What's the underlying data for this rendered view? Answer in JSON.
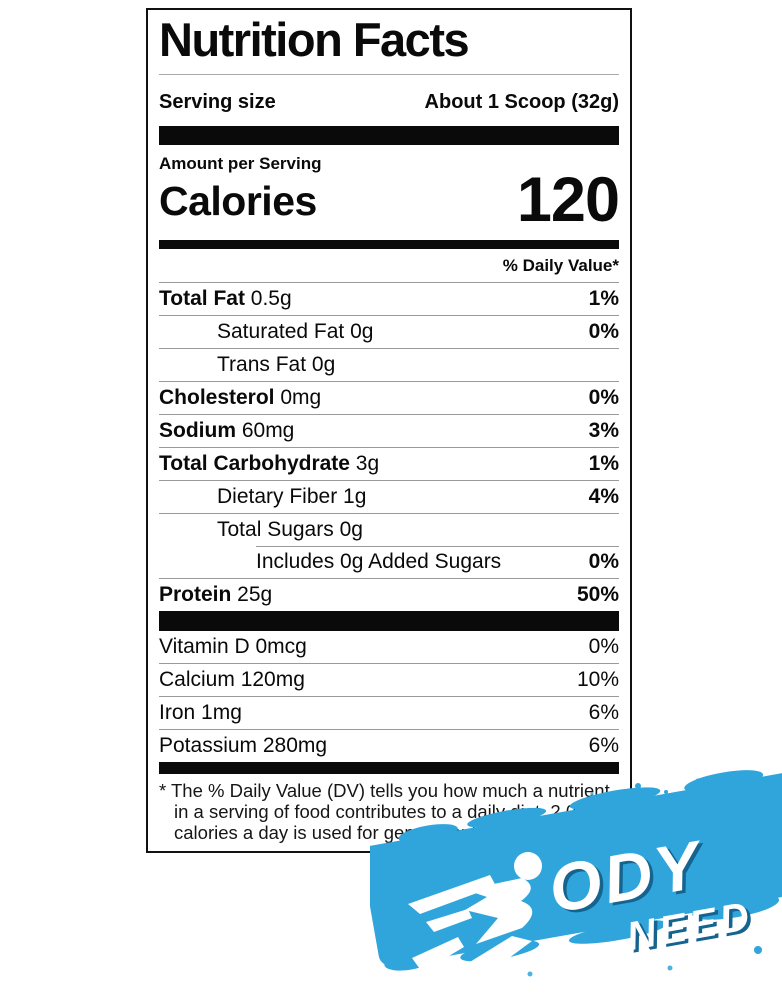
{
  "page": {
    "background": "#ffffff"
  },
  "label": {
    "title": "Nutrition Facts",
    "serving": {
      "label": "Serving size",
      "value": "About 1 Scoop (32g)"
    },
    "amount_per_serving": "Amount per Serving",
    "calories_label": "Calories",
    "calories_value": "120",
    "daily_value_header": "% Daily Value*",
    "rows": [
      {
        "name": "Total Fat",
        "amount": "0.5g",
        "dv": "1%",
        "bold": true,
        "indent": 0
      },
      {
        "name": "Saturated Fat",
        "amount": "0g",
        "dv": "0%",
        "bold": false,
        "indent": 1
      },
      {
        "name": "Trans Fat",
        "amount": "0g",
        "dv": "",
        "bold": false,
        "indent": 1
      },
      {
        "name": "Cholesterol",
        "amount": "0mg",
        "dv": "0%",
        "bold": true,
        "indent": 0
      },
      {
        "name": "Sodium",
        "amount": "60mg",
        "dv": "3%",
        "bold": true,
        "indent": 0
      },
      {
        "name": "Total Carbohydrate",
        "amount": "3g",
        "dv": "1%",
        "bold": true,
        "indent": 0
      },
      {
        "name": "Dietary Fiber",
        "amount": "1g",
        "dv": "4%",
        "bold": false,
        "indent": 1
      },
      {
        "name": "Total Sugars",
        "amount": "0g",
        "dv": "",
        "bold": false,
        "indent": 1
      },
      {
        "name": "Includes 0g Added Sugars",
        "amount": "",
        "dv": "0%",
        "bold": false,
        "indent": 2,
        "partial_rule": true
      },
      {
        "name": "Protein",
        "amount": "25g",
        "dv": "50%",
        "bold": true,
        "indent": 0
      }
    ],
    "micronutrients": [
      {
        "name": "Vitamin D",
        "amount": "0mcg",
        "dv": "0%"
      },
      {
        "name": "Calcium",
        "amount": "120mg",
        "dv": "10%"
      },
      {
        "name": "Iron",
        "amount": "1mg",
        "dv": "6%"
      },
      {
        "name": "Potassium",
        "amount": "280mg",
        "dv": "6%"
      }
    ],
    "footnote_lines": [
      "* The % Daily Value (DV) tells you how much a nutrient",
      "in a serving of food contributes to a daily diet. 2,000",
      "calories a day is used for general nutrition advice."
    ]
  },
  "brand": {
    "word_top": "ODY",
    "word_bottom": "NEED",
    "icon": "runner-icon",
    "brush_color": "#2fa5dc",
    "shadow_color": "#15638f",
    "text_color": "#ffffff"
  },
  "colors": {
    "label_text": "#0a0a0a",
    "hairline": "#9a9a9a",
    "border": "#111111"
  }
}
